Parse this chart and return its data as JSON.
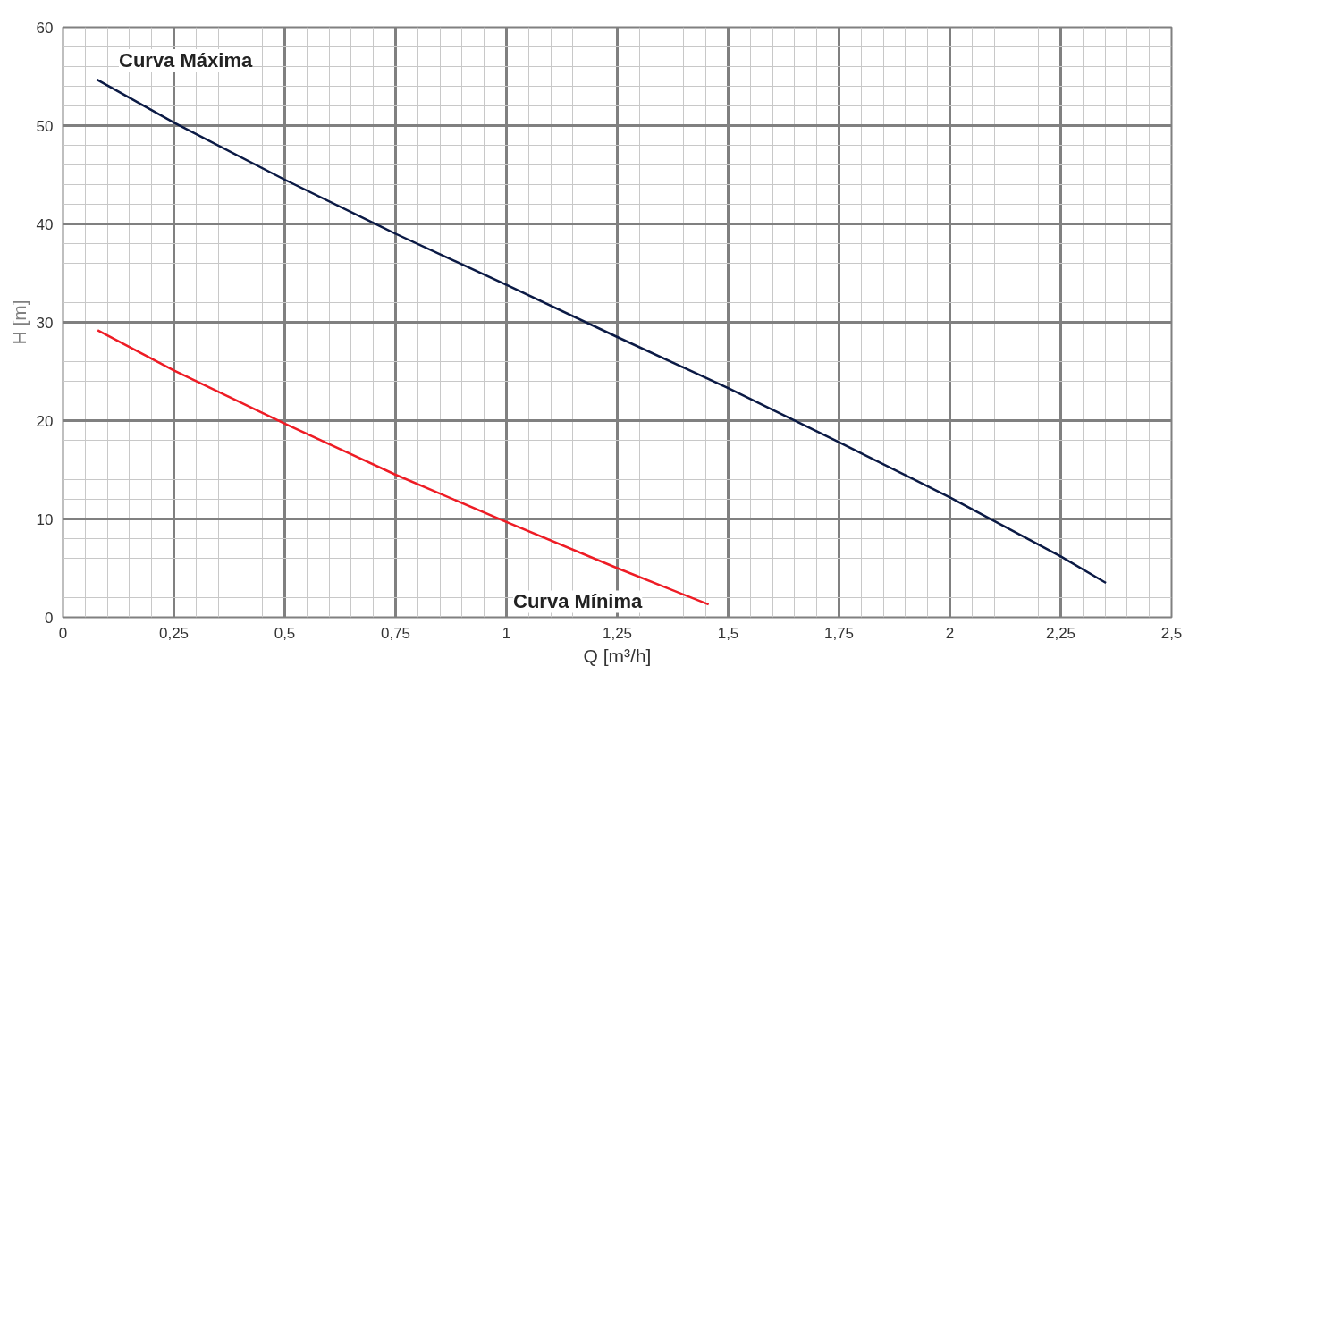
{
  "chart_data": {
    "type": "line",
    "xlabel": "Q [m³/h]",
    "ylabel": "H [m]",
    "xlim": [
      0,
      2.5
    ],
    "ylim": [
      0,
      60
    ],
    "xticks": [
      0,
      {
        "value": 0.25,
        "label": "0,25"
      },
      {
        "value": 0.5,
        "label": "0,5"
      },
      {
        "value": 0.75,
        "label": "0,75"
      },
      1,
      {
        "value": 1.25,
        "label": "1,25"
      },
      {
        "value": 1.5,
        "label": "1,5"
      },
      {
        "value": 1.75,
        "label": "1,75"
      },
      2,
      {
        "value": 2.25,
        "label": "2,25"
      },
      {
        "value": 2.5,
        "label": "2,5"
      }
    ],
    "yticks": [
      0,
      10,
      20,
      30,
      40,
      50,
      60
    ],
    "grid": true,
    "marker": "none",
    "line_style": "solid",
    "series": [
      {
        "name": "Curva Máxima",
        "color": "#0b1a45",
        "x": [
          0.076,
          0.25,
          0.5,
          0.75,
          1.0,
          1.25,
          1.5,
          1.75,
          2.0,
          2.25,
          2.352
        ],
        "values": [
          54.7,
          50.3,
          44.5,
          39.0,
          33.8,
          28.5,
          23.3,
          17.8,
          12.2,
          6.2,
          3.5
        ]
      },
      {
        "name": "Curva Mínima",
        "color": "#ee1c25",
        "x": [
          0.078,
          0.25,
          0.5,
          0.75,
          1.0,
          1.25,
          1.456
        ],
        "values": [
          29.2,
          25.1,
          19.7,
          14.5,
          9.7,
          5.0,
          1.3
        ]
      }
    ]
  }
}
